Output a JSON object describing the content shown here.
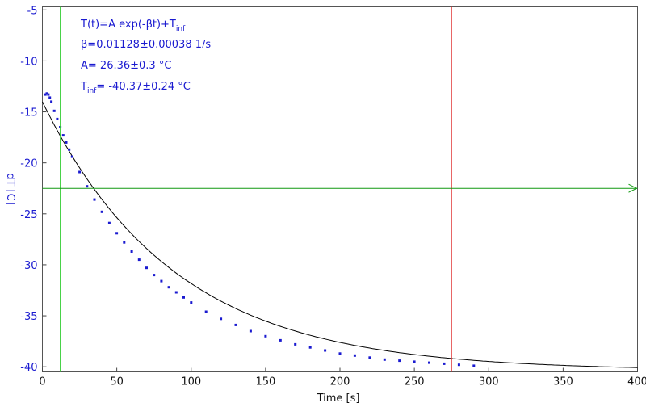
{
  "chart_data": {
    "type": "scatter",
    "title": "",
    "xlabel": "Time [s]",
    "ylabel": "dT [C]",
    "xlim": [
      0,
      400
    ],
    "ylim": [
      -40.5,
      -4.7
    ],
    "x_ticks": [
      0,
      50,
      100,
      150,
      200,
      250,
      300,
      350,
      400
    ],
    "y_ticks": [
      -5,
      -10,
      -15,
      -20,
      -25,
      -30,
      -35,
      -40
    ],
    "x_tick_labels": [
      "0",
      "50",
      "100",
      "150",
      "200",
      "250",
      "300",
      "350",
      "400"
    ],
    "y_tick_labels": [
      "-5",
      "-10",
      "-15",
      "-20",
      "-25",
      "-30",
      "-35",
      "-40"
    ],
    "grid": false,
    "annotations": {
      "line1": "T(t)=A exp(-βt)+T",
      "line1_sub": "inf",
      "line2": "β=0.01128±0.00038 1/s",
      "line3": "A= 26.36±0.3 °C",
      "line4_main": "T",
      "line4_sub": "inf",
      "line4_rest": "= -40.37±0.24 °C"
    },
    "fit": {
      "A": 26.36,
      "beta": 0.01128,
      "T_inf": -40.37,
      "x_range": [
        0,
        400
      ],
      "color": "#000000"
    },
    "markers": {
      "vertical_green_x": 12,
      "vertical_red_x": 275,
      "horizontal_green_y": -22.5
    },
    "series": [
      {
        "color": "#1a1ad0",
        "x": [
          2,
          3,
          4,
          5,
          6,
          8,
          10,
          12,
          14,
          16,
          18,
          20,
          25,
          30,
          35,
          40,
          45,
          50,
          55,
          60,
          65,
          70,
          75,
          80,
          85,
          90,
          95,
          100,
          110,
          120,
          130,
          140,
          150,
          160,
          170,
          180,
          190,
          200,
          210,
          220,
          230,
          240,
          250,
          260,
          270,
          280,
          290
        ],
        "values": [
          -13.3,
          -13.2,
          -13.3,
          -13.6,
          -14.0,
          -14.9,
          -15.7,
          -16.5,
          -17.3,
          -18.0,
          -18.7,
          -19.4,
          -20.9,
          -22.3,
          -23.6,
          -24.8,
          -25.9,
          -26.9,
          -27.8,
          -28.7,
          -29.5,
          -30.3,
          -31.0,
          -31.6,
          -32.2,
          -32.7,
          -33.2,
          -33.7,
          -34.6,
          -35.3,
          -35.9,
          -36.5,
          -37.0,
          -37.4,
          -37.8,
          -38.1,
          -38.4,
          -38.7,
          -38.9,
          -39.1,
          -39.3,
          -39.4,
          -39.5,
          -39.6,
          -39.7,
          -39.8,
          -39.9
        ]
      }
    ]
  }
}
